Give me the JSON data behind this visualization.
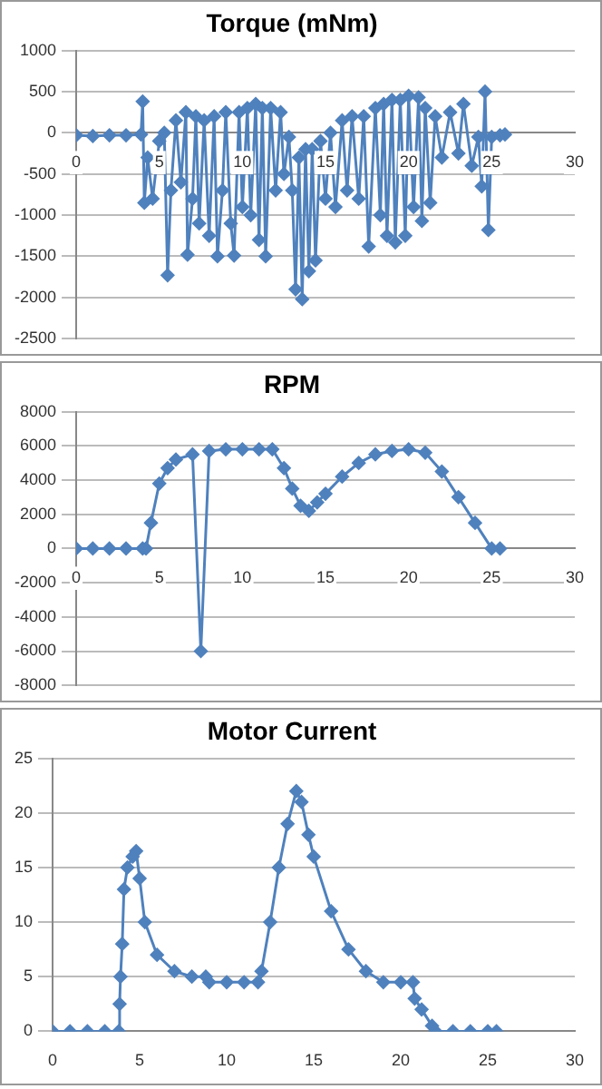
{
  "chart_data": [
    {
      "type": "line",
      "title": "Torque (mNm)",
      "marker": "diamond",
      "grid": "y",
      "legend": false,
      "x": [
        0,
        1,
        2,
        3,
        3.9,
        4,
        4.1,
        4.3,
        4.6,
        5,
        5.3,
        5.5,
        5.7,
        6,
        6.3,
        6.6,
        6.7,
        7,
        7.2,
        7.4,
        7.7,
        8,
        8.3,
        8.5,
        8.8,
        9,
        9.3,
        9.5,
        9.8,
        10,
        10.3,
        10.5,
        10.8,
        11,
        11.2,
        11.4,
        11.7,
        12,
        12.3,
        12.5,
        12.8,
        13,
        13.2,
        13.4,
        13.6,
        13.8,
        14,
        14.2,
        14.4,
        14.7,
        15,
        15.3,
        15.6,
        16,
        16.3,
        16.6,
        17,
        17.3,
        17.6,
        18,
        18.3,
        18.5,
        18.7,
        19,
        19.2,
        19.5,
        19.8,
        20,
        20.3,
        20.6,
        20.8,
        21,
        21.3,
        21.6,
        22,
        22.5,
        23,
        23.3,
        23.8,
        24.2,
        24.4,
        24.6,
        24.8,
        25,
        25.5,
        25.8
      ],
      "series": [
        {
          "color": "#4f81bd",
          "values": [
            -30,
            -40,
            -30,
            -30,
            -20,
            380,
            -850,
            -300,
            -800,
            -100,
            0,
            -1730,
            -700,
            150,
            -600,
            250,
            -1480,
            -800,
            200,
            -1100,
            150,
            -1250,
            200,
            -1500,
            -700,
            250,
            -1100,
            -1490,
            250,
            -900,
            300,
            -1000,
            350,
            -1300,
            300,
            -1500,
            300,
            -700,
            250,
            -500,
            -50,
            -700,
            -1900,
            -300,
            -2020,
            -200,
            -1680,
            -200,
            -1550,
            -100,
            -800,
            0,
            -900,
            150,
            -700,
            200,
            -800,
            200,
            -1380,
            300,
            -1000,
            350,
            -1250,
            400,
            -1330,
            400,
            -1250,
            450,
            -900,
            430,
            -1070,
            300,
            -850,
            200,
            -300,
            250,
            -250,
            350,
            -400,
            -50,
            -650,
            500,
            -1180,
            -50,
            -30,
            -20
          ]
        }
      ],
      "xlim": [
        0,
        30
      ],
      "xticks": [
        0,
        5,
        10,
        15,
        20,
        25,
        30
      ],
      "ylim": [
        -2500,
        1000
      ],
      "yticks": [
        -2500,
        -2000,
        -1500,
        -1000,
        -500,
        0,
        500,
        1000
      ]
    },
    {
      "type": "line",
      "title": "RPM",
      "marker": "diamond",
      "grid": "y",
      "legend": false,
      "x": [
        0,
        1,
        2,
        3,
        4,
        4.2,
        4.5,
        5,
        5.5,
        6,
        7,
        7.5,
        8,
        9,
        10,
        11,
        11.8,
        12.5,
        13,
        13.5,
        14,
        14.5,
        15,
        16,
        17,
        18,
        19,
        20,
        21,
        22,
        23,
        24,
        25,
        25.5
      ],
      "series": [
        {
          "color": "#4f81bd",
          "values": [
            0,
            0,
            0,
            0,
            0,
            0,
            1500,
            3800,
            4700,
            5200,
            5500,
            -6000,
            5700,
            5800,
            5800,
            5800,
            5800,
            4700,
            3500,
            2500,
            2200,
            2700,
            3200,
            4200,
            5000,
            5500,
            5700,
            5800,
            5600,
            4500,
            3000,
            1500,
            0,
            0
          ]
        }
      ],
      "xlim": [
        0,
        30
      ],
      "xticks": [
        0,
        5,
        10,
        15,
        20,
        25,
        30
      ],
      "ylim": [
        -8000,
        8000
      ],
      "yticks": [
        -8000,
        -6000,
        -4000,
        -2000,
        0,
        2000,
        4000,
        6000,
        8000
      ]
    },
    {
      "type": "line",
      "title": "Motor Current",
      "marker": "diamond",
      "grid": "y",
      "legend": false,
      "x": [
        0,
        1,
        2,
        3,
        3.8,
        3.85,
        3.9,
        4,
        4.1,
        4.3,
        4.6,
        4.8,
        5,
        5.3,
        6,
        7,
        8,
        8.8,
        9,
        10,
        11,
        11.8,
        12,
        12.5,
        13,
        13.5,
        14,
        14.3,
        14.7,
        15,
        16,
        17,
        18,
        19,
        20,
        20.7,
        20.8,
        21.2,
        21.8,
        22,
        23,
        24,
        25,
        25.5
      ],
      "series": [
        {
          "color": "#4f81bd",
          "values": [
            0,
            0,
            0,
            0,
            0,
            2.5,
            5,
            8,
            13,
            15,
            16,
            16.5,
            14,
            10,
            7,
            5.5,
            5,
            5,
            4.5,
            4.5,
            4.5,
            4.5,
            5.5,
            10,
            15,
            19,
            22,
            21,
            18,
            16,
            11,
            7.5,
            5.5,
            4.5,
            4.5,
            4.5,
            3,
            2,
            0.5,
            0,
            0,
            0,
            0,
            0
          ]
        }
      ],
      "xlim": [
        0,
        30
      ],
      "xticks": [
        0,
        5,
        10,
        15,
        20,
        25,
        30
      ],
      "ylim": [
        0,
        25
      ],
      "yticks": [
        0,
        5,
        10,
        15,
        20,
        25
      ]
    }
  ]
}
